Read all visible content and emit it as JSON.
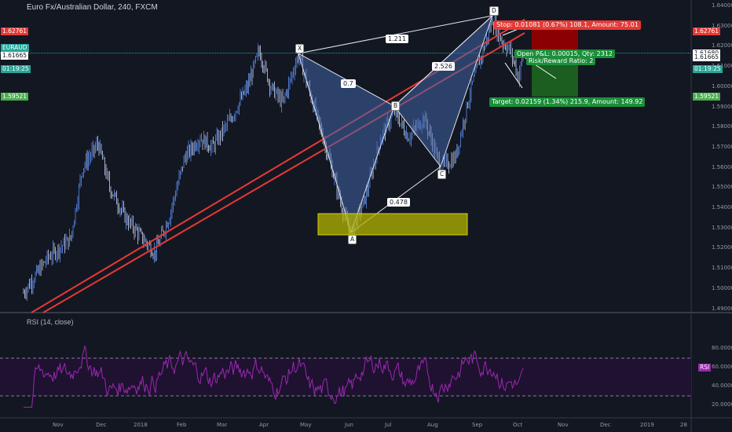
{
  "chart": {
    "title": "Euro Fx/Australian Dollar, 240, FXCM",
    "symbol_tag": "EURAUD",
    "countdown": "01:19:25",
    "colors": {
      "bg": "#131722",
      "up": "#5b8def",
      "down": "#c9cfe8",
      "pattern": "#2962ff",
      "channel": "#e53935",
      "stop": "#8b0000",
      "target": "#1b5e20",
      "rsi": "#9c27b0"
    }
  },
  "left_tags": [
    {
      "text": "1.62761",
      "bg": "#e53935",
      "color": "#ffffff",
      "price": 1.62761
    },
    {
      "text": "1.61680",
      "bg": "#ffffff",
      "color": "#131722",
      "price": 1.6168
    },
    {
      "text": "1.61665",
      "bg": "#ffffff",
      "color": "#131722",
      "price": 1.6156
    },
    {
      "text": "1.59521",
      "bg": "#4caf50",
      "color": "#ffffff",
      "price": 1.59521
    }
  ],
  "right_tags": [
    {
      "text": "1.62761",
      "bg": "#e53935",
      "color": "#ffffff",
      "price": 1.62761
    },
    {
      "text": "1.61680",
      "bg": "#ffffff",
      "color": "#131722",
      "price": 1.6168
    },
    {
      "text": "1.61665",
      "bg": "#ffffff",
      "color": "#131722",
      "price": 1.6146
    },
    {
      "text": "1.59521",
      "bg": "#4caf50",
      "color": "#ffffff",
      "price": 1.59521
    }
  ],
  "price_axis": [
    "1.64000",
    "1.63000",
    "1.62000",
    "1.61000",
    "1.60000",
    "1.59000",
    "1.58000",
    "1.57000",
    "1.56000",
    "1.55000",
    "1.54000",
    "1.53000",
    "1.52000",
    "1.51000",
    "1.50000",
    "1.49000"
  ],
  "rsi_axis": [
    "80.0000",
    "60.0000",
    "40.0000",
    "20.0000"
  ],
  "date_axis": [
    "Nov",
    "Dec",
    "2018",
    "Feb",
    "Mar",
    "Apr",
    "May",
    "Jun",
    "Jul",
    "Aug",
    "Sep",
    "Oct",
    "Nov",
    "Dec",
    "2019",
    "28"
  ],
  "rsi_title": "RSI (14, close)",
  "rsi_tag": "RSI",
  "pattern_points": {
    "X": "X",
    "A": "A",
    "B": "B",
    "C": "C",
    "D": "D"
  },
  "ratios": {
    "xa_b": "0.7",
    "ab_c": "0.478",
    "bc_d": "2.526",
    "xa_d": "1.211"
  },
  "position": {
    "stop": "Stop: 0.01081 (0.67%) 108.1, Amount: 75.01",
    "open": "Open P&L: 0.00015, Qty: 2312",
    "rr": "Risk/Reward Ratio: 2",
    "target": "Target: 0.02159 (1.34%) 215.9, Amount: 149.92"
  }
}
